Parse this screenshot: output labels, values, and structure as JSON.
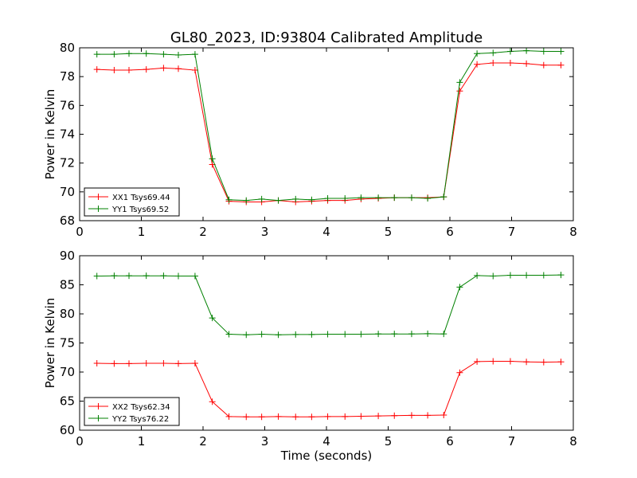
{
  "title": "GL80_2023, ID:93804 Calibrated Amplitude",
  "chart_data": [
    {
      "type": "line",
      "xlabel": "",
      "ylabel": "Power in Kelvin",
      "xlim": [
        0,
        8
      ],
      "ylim": [
        68,
        80
      ],
      "xticks": [
        "0",
        "1",
        "2",
        "3",
        "4",
        "5",
        "6",
        "7",
        "8"
      ],
      "yticks": [
        "68",
        "70",
        "72",
        "74",
        "76",
        "78",
        "80"
      ],
      "legend_position": "lower-left",
      "grid": false,
      "x": [
        0.28,
        0.56,
        0.8,
        1.08,
        1.36,
        1.6,
        1.87,
        2.15,
        2.42,
        2.7,
        2.95,
        3.22,
        3.5,
        3.76,
        4.02,
        4.3,
        4.56,
        4.84,
        5.1,
        5.38,
        5.64,
        5.9,
        6.16,
        6.44,
        6.7,
        6.98,
        7.24,
        7.52,
        7.8
      ],
      "series": [
        {
          "name": "XX1 Tsys69.44",
          "color": "#ff0000",
          "values": [
            78.5,
            78.45,
            78.45,
            78.5,
            78.6,
            78.55,
            78.45,
            71.9,
            69.35,
            69.3,
            69.3,
            69.4,
            69.3,
            69.35,
            69.4,
            69.4,
            69.5,
            69.55,
            69.6,
            69.6,
            69.6,
            69.65,
            77.0,
            78.85,
            78.95,
            78.95,
            78.9,
            78.8,
            78.8
          ]
        },
        {
          "name": "YY1 Tsys69.52",
          "color": "#008000",
          "values": [
            79.55,
            79.55,
            79.6,
            79.6,
            79.55,
            79.5,
            79.55,
            72.3,
            69.45,
            69.4,
            69.5,
            69.4,
            69.5,
            69.45,
            69.55,
            69.55,
            69.6,
            69.6,
            69.6,
            69.6,
            69.55,
            69.65,
            77.6,
            79.6,
            79.65,
            79.75,
            79.8,
            79.75,
            79.75
          ]
        }
      ]
    },
    {
      "type": "line",
      "xlabel": "Time (seconds)",
      "ylabel": "Power in Kelvin",
      "xlim": [
        0,
        8
      ],
      "ylim": [
        60,
        90
      ],
      "xticks": [
        "0",
        "1",
        "2",
        "3",
        "4",
        "5",
        "6",
        "7",
        "8"
      ],
      "yticks": [
        "60",
        "65",
        "70",
        "75",
        "80",
        "85",
        "90"
      ],
      "legend_position": "lower-left",
      "grid": false,
      "x": [
        0.28,
        0.56,
        0.8,
        1.08,
        1.36,
        1.6,
        1.87,
        2.15,
        2.42,
        2.7,
        2.95,
        3.22,
        3.5,
        3.76,
        4.02,
        4.3,
        4.56,
        4.84,
        5.1,
        5.38,
        5.64,
        5.9,
        6.16,
        6.44,
        6.7,
        6.98,
        7.24,
        7.52,
        7.8
      ],
      "series": [
        {
          "name": "XX2 Tsys62.34",
          "color": "#ff0000",
          "values": [
            71.5,
            71.45,
            71.45,
            71.5,
            71.5,
            71.45,
            71.5,
            64.9,
            62.35,
            62.3,
            62.3,
            62.35,
            62.3,
            62.3,
            62.35,
            62.35,
            62.4,
            62.45,
            62.5,
            62.55,
            62.55,
            62.6,
            69.9,
            71.8,
            71.85,
            71.85,
            71.75,
            71.7,
            71.75
          ]
        },
        {
          "name": "YY2 Tsys76.22",
          "color": "#008000",
          "values": [
            86.5,
            86.55,
            86.55,
            86.55,
            86.55,
            86.5,
            86.5,
            79.3,
            76.5,
            76.4,
            76.5,
            76.4,
            76.45,
            76.45,
            76.5,
            76.5,
            76.5,
            76.55,
            76.55,
            76.55,
            76.6,
            76.55,
            84.6,
            86.6,
            86.5,
            86.65,
            86.65,
            86.65,
            86.7
          ]
        }
      ]
    }
  ]
}
